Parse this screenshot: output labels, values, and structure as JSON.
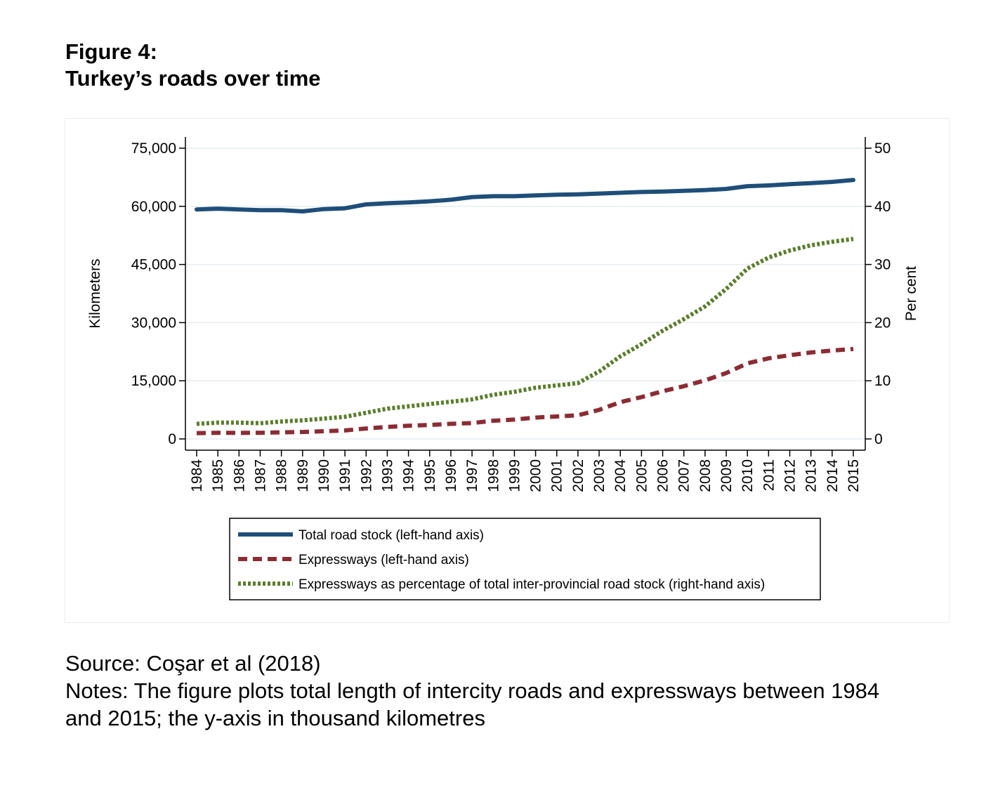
{
  "figure": {
    "label": "Figure 4:",
    "title": "Turkey’s roads over time"
  },
  "chart_data": {
    "type": "line",
    "x": [
      1984,
      1985,
      1986,
      1987,
      1988,
      1989,
      1990,
      1991,
      1992,
      1993,
      1994,
      1995,
      1996,
      1997,
      1998,
      1999,
      2000,
      2001,
      2002,
      2003,
      2004,
      2005,
      2006,
      2007,
      2008,
      2009,
      2010,
      2011,
      2012,
      2013,
      2014,
      2015
    ],
    "x_tick_labels": [
      "1984",
      "1985",
      "1986",
      "1987",
      "1988",
      "1989",
      "1990",
      "1991",
      "1992",
      "1993",
      "1994",
      "1995",
      "1996",
      "1997",
      "1998",
      "1999",
      "2000",
      "2001",
      "2002",
      "2003",
      "2004",
      "2005",
      "2006",
      "2007",
      "2008",
      "2009",
      "2010",
      "2011",
      "2012",
      "2013",
      "2014",
      "2015"
    ],
    "ylabel_left": "Kilometers",
    "ylabel_right": "Per cent",
    "ylim_left": [
      0,
      75000
    ],
    "ylim_right": [
      0,
      50
    ],
    "y_ticks_left": [
      0,
      15000,
      30000,
      45000,
      60000,
      75000
    ],
    "y_tick_labels_left": [
      "0",
      "15,000",
      "30,000",
      "45,000",
      "60,000",
      "75,000"
    ],
    "y_ticks_right": [
      0,
      10,
      20,
      30,
      40,
      50
    ],
    "y_tick_labels_right": [
      "0",
      "10",
      "20",
      "30",
      "40",
      "50"
    ],
    "grid": true,
    "legend_position": "bottom",
    "series": [
      {
        "name": "Total road stock (left-hand axis)",
        "axis": "left",
        "style": "solid",
        "color": "#1f4e79",
        "values": [
          59200,
          59400,
          59200,
          59000,
          59000,
          58700,
          59300,
          59500,
          60500,
          60800,
          61000,
          61300,
          61700,
          62400,
          62600,
          62600,
          62800,
          63000,
          63100,
          63300,
          63500,
          63700,
          63800,
          64000,
          64200,
          64500,
          65200,
          65400,
          65700,
          66000,
          66300,
          66800
        ]
      },
      {
        "name": "Expressways (left-hand axis)",
        "axis": "left",
        "style": "dashed",
        "color": "#8b2c35",
        "values": [
          1500,
          1600,
          1550,
          1600,
          1700,
          1800,
          2000,
          2200,
          2700,
          3100,
          3400,
          3600,
          3900,
          4100,
          4700,
          5000,
          5500,
          5800,
          6100,
          7500,
          9500,
          10800,
          12300,
          13600,
          15100,
          17000,
          19500,
          20800,
          21600,
          22300,
          22800,
          23200
        ]
      },
      {
        "name": "Expressways as percentage of total inter-provincial road stock (right-hand axis)",
        "axis": "right",
        "style": "dotted",
        "color": "#5b7d2c",
        "values": [
          2.6,
          2.8,
          2.8,
          2.7,
          3.0,
          3.2,
          3.5,
          3.8,
          4.5,
          5.2,
          5.6,
          6.0,
          6.4,
          6.8,
          7.6,
          8.1,
          8.8,
          9.2,
          9.6,
          11.6,
          14.2,
          16.3,
          18.6,
          20.6,
          22.8,
          25.8,
          29.3,
          31.2,
          32.4,
          33.3,
          33.9,
          34.4
        ]
      }
    ]
  },
  "source": {
    "line1": "Source: Coşar et al (2018)",
    "line2": "Notes: The figure plots total length of intercity roads and expressways between 1984",
    "line3": "and 2015; the y-axis in thousand kilometres"
  }
}
